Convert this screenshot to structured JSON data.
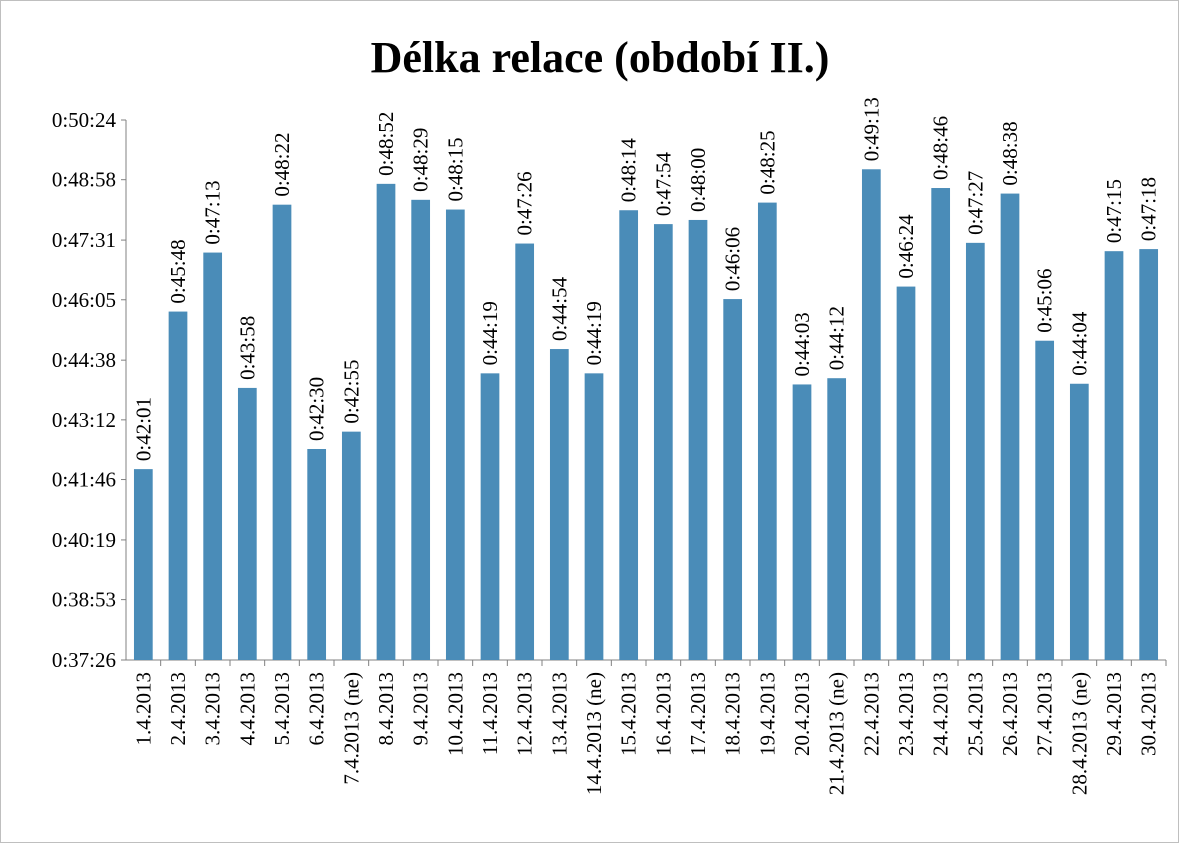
{
  "chart_data": {
    "type": "bar",
    "title": "Délka relace (období II.)",
    "categories": [
      "1.4.2013",
      "2.4.2013",
      "3.4.2013",
      "4.4.2013",
      "5.4.2013",
      "6.4.2013",
      "7.4.2013 (ne)",
      "8.4.2013",
      "9.4.2013",
      "10.4.2013",
      "11.4.2013",
      "12.4.2013",
      "13.4.2013",
      "14.4.2013 (ne)",
      "15.4.2013",
      "16.4.2013",
      "17.4.2013",
      "18.4.2013",
      "19.4.2013",
      "20.4.2013",
      "21.4.2013 (ne)",
      "22.4.2013",
      "23.4.2013",
      "24.4.2013",
      "25.4.2013",
      "26.4.2013",
      "27.4.2013",
      "28.4.2013 (ne)",
      "29.4.2013",
      "30.4.2013"
    ],
    "values": [
      2521,
      2748,
      2833,
      2638,
      2902,
      2550,
      2575,
      2932,
      2909,
      2895,
      2659,
      2846,
      2694,
      2659,
      2894,
      2874,
      2880,
      2766,
      2905,
      2643,
      2652,
      2953,
      2784,
      2926,
      2847,
      2918,
      2706,
      2644,
      2835,
      2838
    ],
    "value_labels": [
      "0:42:01",
      "0:45:48",
      "0:47:13",
      "0:43:58",
      "0:48:22",
      "0:42:30",
      "0:42:55",
      "0:48:52",
      "0:48:29",
      "0:48:15",
      "0:44:19",
      "0:47:26",
      "0:44:54",
      "0:44:19",
      "0:48:14",
      "0:47:54",
      "0:48:00",
      "0:46:06",
      "0:48:25",
      "0:44:03",
      "0:44:12",
      "0:49:13",
      "0:46:24",
      "0:48:46",
      "0:47:27",
      "0:48:38",
      "0:45:06",
      "0:44:04",
      "0:47:15",
      "0:47:18"
    ],
    "color": "#4a8cb8",
    "ylim": [
      2246,
      3024
    ],
    "yticks": [
      {
        "value": 2246,
        "label": "0:37:26"
      },
      {
        "value": 2333,
        "label": "0:38:53"
      },
      {
        "value": 2419,
        "label": "0:40:19"
      },
      {
        "value": 2506,
        "label": "0:41:46"
      },
      {
        "value": 2592,
        "label": "0:43:12"
      },
      {
        "value": 2678,
        "label": "0:44:38"
      },
      {
        "value": 2765,
        "label": "0:46:05"
      },
      {
        "value": 2851,
        "label": "0:47:31"
      },
      {
        "value": 2938,
        "label": "0:48:58"
      },
      {
        "value": 3024,
        "label": "0:50:24"
      }
    ],
    "grid": false
  }
}
